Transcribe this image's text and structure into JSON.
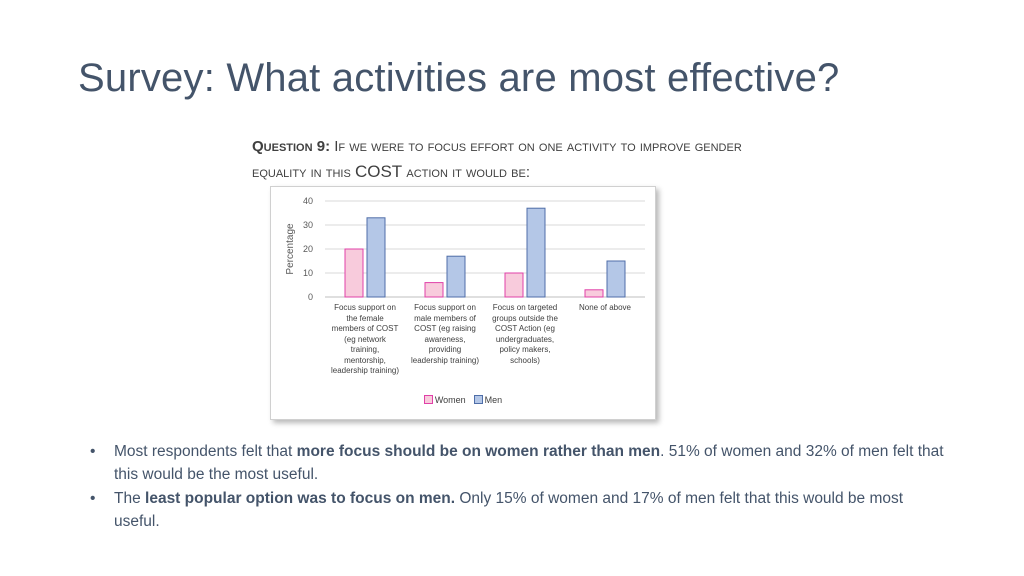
{
  "slide": {
    "title": "Survey: What activities are most effective?",
    "question": {
      "prefix": "Question 9:",
      "text_part1": " If we were to focus effort on one activity to improve gender equality in this ",
      "cost": "COST",
      "text_part2": " action it would be:"
    },
    "bullets": [
      {
        "symbol": "•",
        "lead": "Most respondents felt that ",
        "bold": "more focus should be on women rather than men",
        "tail": ". 51% of women and 32% of men felt that this would be the most useful."
      },
      {
        "symbol": "•",
        "lead": "The ",
        "bold": "least popular option was to focus on men.",
        "tail": " Only 15% of women and 17% of men felt that this would be most useful."
      }
    ]
  },
  "chart_data": {
    "type": "bar",
    "title": "",
    "xlabel": "",
    "ylabel": "Percentage",
    "ylim": [
      0,
      40
    ],
    "yticks": [
      0,
      10,
      20,
      30,
      40
    ],
    "grid": true,
    "legend_position": "bottom",
    "categories": [
      "Focus support on the female members of COST (eg network training, mentorship, leadership training)",
      "Focus support on male members of COST (eg raising awareness, providing leadership training)",
      "Focus on targeted groups outside the COST Action (eg undergraduates, policy makers, schools)",
      "None of above"
    ],
    "category_lines": [
      [
        "Focus support on",
        "the female",
        "members of COST",
        "(eg network",
        "training,",
        "mentorship,",
        "leadership training)"
      ],
      [
        "Focus support on",
        "male members of",
        "COST (eg raising",
        "awareness,",
        "providing",
        "leadership training)"
      ],
      [
        "Focus on targeted",
        "groups outside the",
        "COST Action (eg",
        "undergraduates,",
        "policy makers,",
        "schools)"
      ],
      [
        "None of above"
      ]
    ],
    "series": [
      {
        "name": "Women",
        "values": [
          20,
          6,
          10,
          3
        ],
        "fill": "#f8cbdc",
        "stroke": "#e040a8"
      },
      {
        "name": "Men",
        "values": [
          33,
          17,
          37,
          15
        ],
        "fill": "#b4c7e7",
        "stroke": "#4f6ea8"
      }
    ]
  }
}
